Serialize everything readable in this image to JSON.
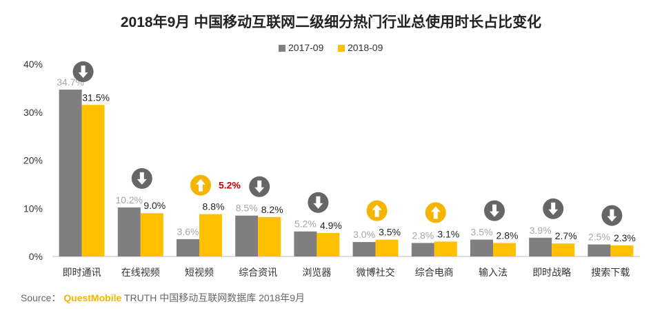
{
  "chart_data": {
    "type": "bar",
    "title": "2018年9月 中国移动互联网二级细分热门行业总使用时长占比变化",
    "categories": [
      "即时通讯",
      "在线视频",
      "短视频",
      "综合资讯",
      "浏览器",
      "微博社交",
      "综合电商",
      "输入法",
      "即时战略",
      "搜索下载"
    ],
    "series": [
      {
        "name": "2017-09",
        "values": [
          34.7,
          10.2,
          3.6,
          8.5,
          5.2,
          3.0,
          2.8,
          3.5,
          3.9,
          2.5
        ],
        "labels": [
          "34.7%",
          "10.2%",
          "3.6%",
          "8.5%",
          "5.2%",
          "3.0%",
          "2.8%",
          "3.5%",
          "3.9%",
          "2.5%"
        ],
        "color": "#7f7f7f"
      },
      {
        "name": "2018-09",
        "values": [
          31.5,
          9.0,
          8.8,
          8.2,
          4.9,
          3.5,
          3.1,
          2.8,
          2.7,
          2.3
        ],
        "labels": [
          "31.5%",
          "9.0%",
          "8.8%",
          "8.2%",
          "4.9%",
          "3.5%",
          "3.1%",
          "2.8%",
          "2.7%",
          "2.3%"
        ],
        "color": "#ffc000"
      }
    ],
    "trend": [
      "down",
      "down",
      "up",
      "down",
      "down",
      "up",
      "up",
      "down",
      "down",
      "down"
    ],
    "trend_colors": {
      "up": "#f5b400",
      "down": "#666666"
    },
    "highlight": {
      "category_index": 2,
      "text": "5.2%",
      "color": "#c00000"
    },
    "ylim": [
      0,
      40
    ],
    "yticks": [
      0,
      10,
      20,
      30,
      40
    ],
    "ytick_labels": [
      "0%",
      "10%",
      "20%",
      "30%",
      "40%"
    ],
    "legend_position": "top-center",
    "grid": false
  },
  "source": {
    "prefix": "Source：",
    "brand": "QuestMobile",
    "suffix": "TRUTH 中国移动互联网数据库 2018年9月"
  }
}
